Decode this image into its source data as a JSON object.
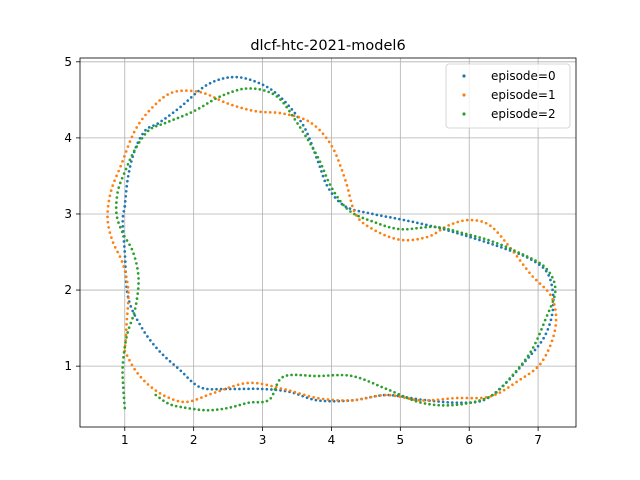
{
  "chart_data": {
    "type": "scatter",
    "title": "dlcf-htc-2021-model6",
    "xlabel": "",
    "ylabel": "",
    "xlim": [
      0.35,
      7.55
    ],
    "ylim": [
      0.2,
      5.05
    ],
    "xticks": [
      1,
      2,
      3,
      4,
      5,
      6,
      7
    ],
    "yticks": [
      1,
      2,
      3,
      4,
      5
    ],
    "grid": true,
    "legend": "top-right",
    "series": [
      {
        "name": "episode=0",
        "color": "#1f77b4",
        "control_points": [
          [
            1.0,
            3.1
          ],
          [
            1.05,
            3.5
          ],
          [
            1.15,
            3.85
          ],
          [
            1.3,
            4.1
          ],
          [
            1.5,
            4.2
          ],
          [
            1.8,
            4.4
          ],
          [
            2.2,
            4.7
          ],
          [
            2.6,
            4.8
          ],
          [
            3.0,
            4.7
          ],
          [
            3.3,
            4.5
          ],
          [
            3.6,
            4.15
          ],
          [
            3.8,
            3.7
          ],
          [
            3.95,
            3.35
          ],
          [
            4.2,
            3.1
          ],
          [
            4.6,
            3.0
          ],
          [
            5.0,
            2.93
          ],
          [
            5.5,
            2.83
          ],
          [
            6.0,
            2.7
          ],
          [
            6.5,
            2.55
          ],
          [
            6.9,
            2.4
          ],
          [
            7.15,
            2.2
          ],
          [
            7.22,
            1.8
          ],
          [
            7.1,
            1.4
          ],
          [
            6.8,
            1.05
          ],
          [
            6.5,
            0.75
          ],
          [
            6.2,
            0.55
          ],
          [
            5.8,
            0.52
          ],
          [
            5.3,
            0.56
          ],
          [
            4.8,
            0.62
          ],
          [
            4.3,
            0.55
          ],
          [
            3.8,
            0.55
          ],
          [
            3.4,
            0.66
          ],
          [
            3.0,
            0.7
          ],
          [
            2.5,
            0.7
          ],
          [
            2.1,
            0.72
          ],
          [
            1.8,
            0.95
          ],
          [
            1.5,
            1.2
          ],
          [
            1.25,
            1.5
          ],
          [
            1.05,
            1.9
          ],
          [
            1.0,
            2.5
          ],
          [
            0.97,
            2.9
          ],
          [
            1.0,
            3.1
          ]
        ],
        "count": 260
      },
      {
        "name": "episode=1",
        "color": "#ff7f0e",
        "control_points": [
          [
            1.0,
            1.2
          ],
          [
            1.15,
            0.95
          ],
          [
            1.35,
            0.75
          ],
          [
            1.6,
            0.6
          ],
          [
            1.9,
            0.53
          ],
          [
            2.3,
            0.65
          ],
          [
            2.8,
            0.78
          ],
          [
            3.3,
            0.7
          ],
          [
            3.8,
            0.58
          ],
          [
            4.3,
            0.55
          ],
          [
            4.8,
            0.62
          ],
          [
            5.3,
            0.55
          ],
          [
            5.8,
            0.58
          ],
          [
            6.3,
            0.6
          ],
          [
            6.7,
            0.8
          ],
          [
            7.05,
            1.05
          ],
          [
            7.25,
            1.5
          ],
          [
            7.2,
            1.9
          ],
          [
            6.9,
            2.2
          ],
          [
            6.6,
            2.55
          ],
          [
            6.3,
            2.85
          ],
          [
            6.0,
            2.92
          ],
          [
            5.7,
            2.85
          ],
          [
            5.4,
            2.7
          ],
          [
            5.0,
            2.66
          ],
          [
            4.6,
            2.8
          ],
          [
            4.35,
            3.0
          ],
          [
            4.2,
            3.45
          ],
          [
            4.0,
            3.9
          ],
          [
            3.7,
            4.2
          ],
          [
            3.3,
            4.32
          ],
          [
            2.9,
            4.35
          ],
          [
            2.5,
            4.45
          ],
          [
            2.1,
            4.6
          ],
          [
            1.7,
            4.6
          ],
          [
            1.4,
            4.4
          ],
          [
            1.15,
            4.1
          ],
          [
            0.95,
            3.65
          ],
          [
            0.8,
            3.3
          ],
          [
            0.75,
            2.95
          ],
          [
            0.82,
            2.65
          ],
          [
            0.97,
            2.35
          ],
          [
            1.05,
            2.0
          ],
          [
            1.03,
            1.6
          ],
          [
            1.0,
            1.2
          ]
        ],
        "count": 260
      },
      {
        "name": "episode=2",
        "color": "#2ca02c",
        "control_points": [
          [
            1.45,
            0.62
          ],
          [
            1.65,
            0.5
          ],
          [
            1.9,
            0.45
          ],
          [
            2.2,
            0.42
          ],
          [
            2.5,
            0.45
          ],
          [
            2.8,
            0.52
          ],
          [
            3.1,
            0.56
          ],
          [
            3.3,
            0.86
          ],
          [
            3.8,
            0.87
          ],
          [
            4.3,
            0.87
          ],
          [
            4.8,
            0.7
          ],
          [
            5.3,
            0.52
          ],
          [
            5.8,
            0.49
          ],
          [
            6.3,
            0.6
          ],
          [
            6.6,
            0.85
          ],
          [
            6.9,
            1.2
          ],
          [
            7.1,
            1.6
          ],
          [
            7.25,
            2.0
          ],
          [
            7.1,
            2.3
          ],
          [
            6.7,
            2.5
          ],
          [
            6.3,
            2.65
          ],
          [
            5.9,
            2.75
          ],
          [
            5.5,
            2.83
          ],
          [
            5.0,
            2.8
          ],
          [
            4.6,
            2.9
          ],
          [
            4.25,
            3.05
          ],
          [
            4.0,
            3.35
          ],
          [
            3.8,
            3.75
          ],
          [
            3.5,
            4.2
          ],
          [
            3.2,
            4.55
          ],
          [
            2.8,
            4.65
          ],
          [
            2.4,
            4.55
          ],
          [
            2.0,
            4.35
          ],
          [
            1.6,
            4.2
          ],
          [
            1.35,
            4.1
          ],
          [
            1.15,
            3.85
          ],
          [
            1.0,
            3.55
          ],
          [
            0.9,
            3.3
          ],
          [
            0.88,
            3.0
          ],
          [
            0.97,
            2.75
          ],
          [
            1.12,
            2.5
          ],
          [
            1.2,
            2.15
          ],
          [
            1.15,
            1.75
          ],
          [
            1.03,
            1.4
          ],
          [
            0.97,
            1.0
          ],
          [
            0.98,
            0.7
          ],
          [
            1.0,
            0.45
          ]
        ],
        "count": 270
      }
    ]
  }
}
